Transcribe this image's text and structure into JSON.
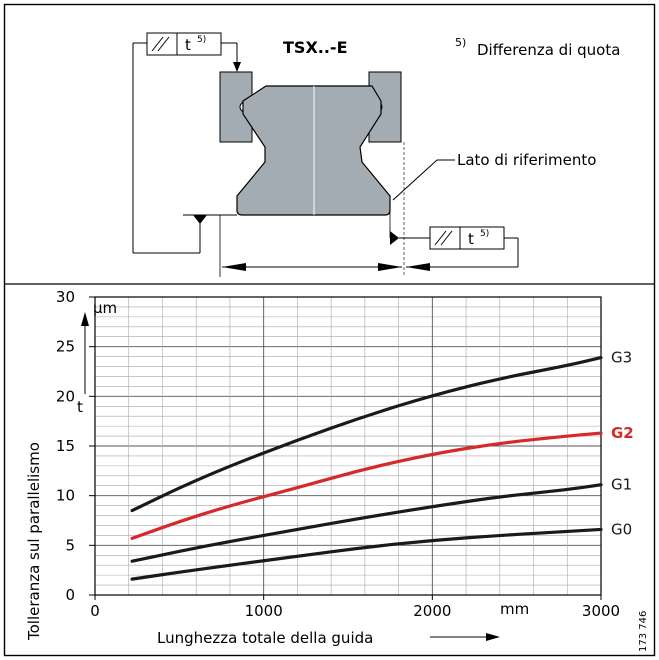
{
  "diagram": {
    "title": "TSX..-E",
    "footnote_mark": "5)",
    "footnote_text": "Differenza di quota",
    "reference_label": "Lato di riferimento",
    "tolerance_symbol_label": "t",
    "tolerance_superscript": "5)"
  },
  "chart_data": {
    "type": "line",
    "xlabel": "Lunghezza totale della guida",
    "x_unit": "mm",
    "ylabel": "Tolleranza sul parallelismo",
    "y_symbol": "t",
    "y_unit": "µm",
    "xlim": [
      0,
      3000
    ],
    "ylim": [
      0,
      30
    ],
    "x_ticks": [
      0,
      1000,
      2000,
      3000
    ],
    "y_ticks": [
      0,
      5,
      10,
      15,
      20,
      25,
      30
    ],
    "grid": true,
    "series": [
      {
        "name": "G3",
        "color": "#1a1a1a",
        "x": [
          220,
          500,
          800,
          1200,
          1600,
          2000,
          2400,
          2800,
          3000
        ],
        "y": [
          8.5,
          10.8,
          13.0,
          15.6,
          18.0,
          20.1,
          21.8,
          23.1,
          23.9
        ]
      },
      {
        "name": "G2",
        "color": "#d42a2a",
        "x": [
          220,
          500,
          800,
          1200,
          1600,
          2000,
          2400,
          2800,
          3000
        ],
        "y": [
          5.7,
          7.4,
          9.0,
          10.8,
          12.7,
          14.2,
          15.3,
          16.0,
          16.3
        ]
      },
      {
        "name": "G1",
        "color": "#1a1a1a",
        "x": [
          220,
          500,
          800,
          1200,
          1600,
          2000,
          2400,
          2800,
          3000
        ],
        "y": [
          3.4,
          4.4,
          5.4,
          6.6,
          7.8,
          8.9,
          9.9,
          10.6,
          11.1
        ]
      },
      {
        "name": "G0",
        "color": "#1a1a1a",
        "x": [
          220,
          500,
          800,
          1200,
          1600,
          2000,
          2400,
          2800,
          3000
        ],
        "y": [
          1.6,
          2.3,
          3.0,
          3.9,
          4.8,
          5.5,
          6.0,
          6.4,
          6.6
        ]
      }
    ]
  },
  "figure_id": "173 746"
}
